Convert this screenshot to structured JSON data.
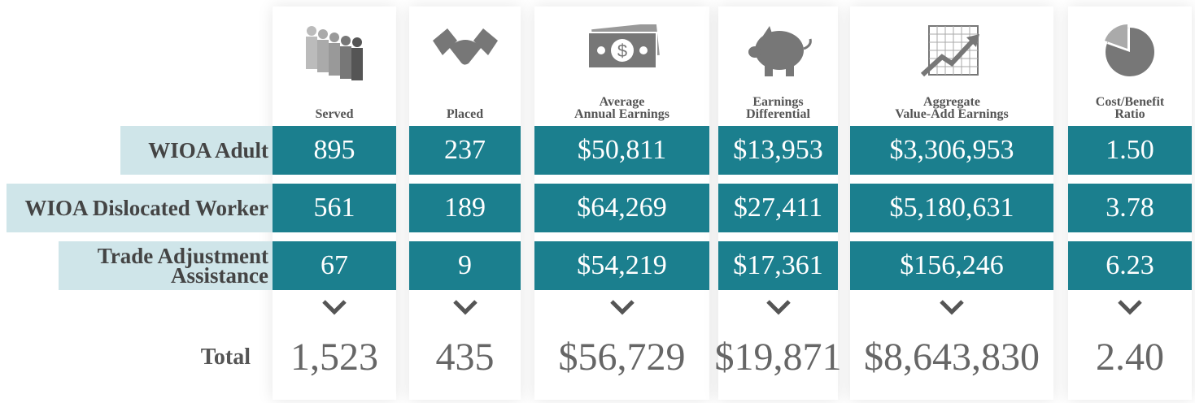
{
  "columns": [
    {
      "header": [
        "Served"
      ]
    },
    {
      "header": [
        "Placed"
      ]
    },
    {
      "header": [
        "Average",
        "Annual Earnings"
      ]
    },
    {
      "header": [
        "Earnings",
        "Differential"
      ]
    },
    {
      "header": [
        "Aggregate",
        "Value-Add Earnings"
      ]
    },
    {
      "header": [
        "Cost/Benefit",
        "Ratio"
      ]
    }
  ],
  "rows": [
    {
      "label": [
        "WIOA Adult"
      ],
      "cells": [
        "895",
        "237",
        "$50,811",
        "$13,953",
        "$3,306,953",
        "1.50"
      ]
    },
    {
      "label": [
        "WIOA Dislocated Worker"
      ],
      "cells": [
        "561",
        "189",
        "$64,269",
        "$27,411",
        "$5,180,631",
        "3.78"
      ]
    },
    {
      "label": [
        "Trade Adjustment",
        "Assistance"
      ],
      "cells": [
        "67",
        "9",
        "$54,219",
        "$17,361",
        "$156,246",
        "6.23"
      ]
    }
  ],
  "total": {
    "label": "Total",
    "cells": [
      "1,523",
      "435",
      "$56,729",
      "$19,871",
      "$8,643,830",
      "2.40"
    ]
  }
}
